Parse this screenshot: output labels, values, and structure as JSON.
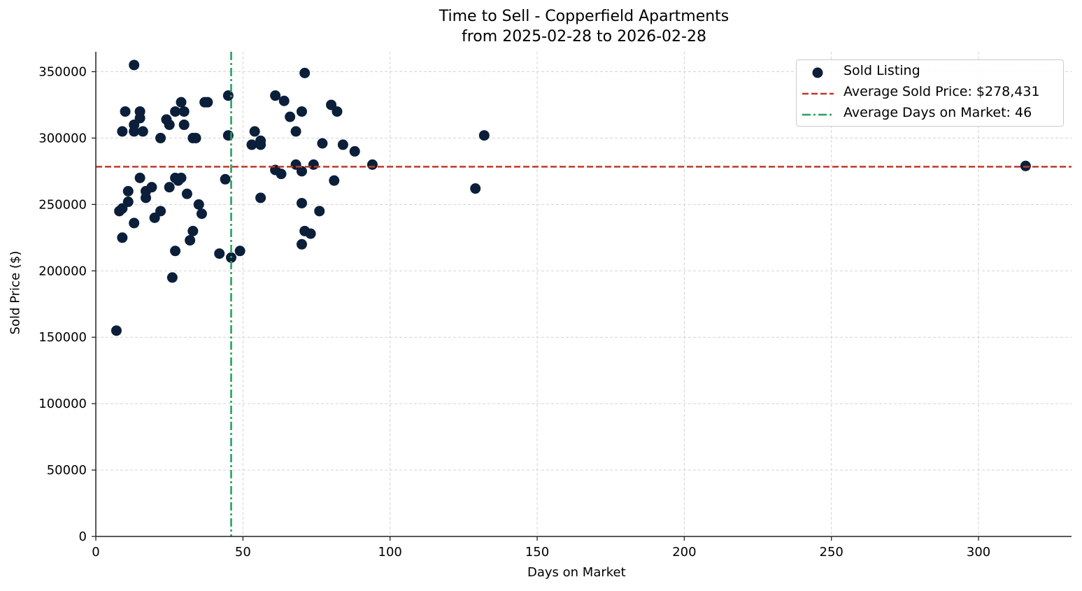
{
  "chart_data": {
    "type": "scatter",
    "title": "Time to Sell - Copperfield Apartments",
    "subtitle": "from 2025-02-28 to 2026-02-28",
    "xlabel": "Days on Market",
    "ylabel": "Sold Price ($)",
    "xlim": [
      0,
      331.6
    ],
    "ylim": [
      0,
      365000
    ],
    "xticks": [
      0,
      50,
      100,
      150,
      200,
      250,
      300
    ],
    "yticks": [
      0,
      50000,
      100000,
      150000,
      200000,
      250000,
      300000,
      350000
    ],
    "grid": true,
    "legend_position": "upper right",
    "colors": {
      "points": "#0b1f3a",
      "avg_price_line": "#c0392b",
      "avg_days_line": "#27a060",
      "grid": "#d3d3d3",
      "axis": "#222222"
    },
    "series": [
      {
        "name": "Sold Listing",
        "kind": "scatter",
        "points": [
          [
            13,
            355000
          ],
          [
            10,
            320000
          ],
          [
            15,
            320000
          ],
          [
            15,
            315000
          ],
          [
            9,
            305000
          ],
          [
            13,
            310000
          ],
          [
            13,
            305000
          ],
          [
            16,
            305000
          ],
          [
            24,
            314000
          ],
          [
            27,
            320000
          ],
          [
            29,
            327000
          ],
          [
            30,
            320000
          ],
          [
            25,
            310000
          ],
          [
            30,
            310000
          ],
          [
            22,
            300000
          ],
          [
            33,
            300000
          ],
          [
            34,
            300000
          ],
          [
            37,
            327000
          ],
          [
            38,
            327000
          ],
          [
            45,
            332000
          ],
          [
            45,
            302000
          ],
          [
            15,
            270000
          ],
          [
            11,
            260000
          ],
          [
            17,
            260000
          ],
          [
            19,
            263000
          ],
          [
            17,
            255000
          ],
          [
            11,
            252000
          ],
          [
            8,
            245000
          ],
          [
            9,
            247000
          ],
          [
            13,
            236000
          ],
          [
            9,
            225000
          ],
          [
            20,
            240000
          ],
          [
            22,
            245000
          ],
          [
            25,
            263000
          ],
          [
            27,
            270000
          ],
          [
            28,
            268000
          ],
          [
            29,
            270000
          ],
          [
            31,
            258000
          ],
          [
            35,
            250000
          ],
          [
            36,
            243000
          ],
          [
            33,
            230000
          ],
          [
            32,
            223000
          ],
          [
            27,
            215000
          ],
          [
            26,
            195000
          ],
          [
            7,
            155000
          ],
          [
            44,
            269000
          ],
          [
            42,
            213000
          ],
          [
            46,
            210000
          ],
          [
            49,
            215000
          ],
          [
            71,
            349000
          ],
          [
            61,
            332000
          ],
          [
            64,
            328000
          ],
          [
            66,
            316000
          ],
          [
            68,
            305000
          ],
          [
            54,
            305000
          ],
          [
            53,
            295000
          ],
          [
            56,
            298000
          ],
          [
            56,
            295000
          ],
          [
            70,
            320000
          ],
          [
            80,
            325000
          ],
          [
            82,
            320000
          ],
          [
            77,
            296000
          ],
          [
            84,
            295000
          ],
          [
            88,
            290000
          ],
          [
            61,
            276000
          ],
          [
            63,
            273000
          ],
          [
            68,
            280000
          ],
          [
            70,
            275000
          ],
          [
            74,
            280000
          ],
          [
            94,
            280000
          ],
          [
            81,
            268000
          ],
          [
            56,
            255000
          ],
          [
            70,
            251000
          ],
          [
            76,
            245000
          ],
          [
            71,
            230000
          ],
          [
            73,
            228000
          ],
          [
            70,
            220000
          ],
          [
            129,
            262000
          ],
          [
            132,
            302000
          ],
          [
            316,
            279000
          ]
        ]
      },
      {
        "name": "Average Sold Price: $278,431",
        "kind": "hline",
        "y": 278431,
        "style": "dashed"
      },
      {
        "name": "Average Days on Market: 46",
        "kind": "vline",
        "x": 46,
        "style": "dashdot"
      }
    ]
  },
  "labels": {
    "title": "Time to Sell - Copperfield Apartments",
    "subtitle": "from 2025-02-28 to 2026-02-28",
    "xlabel": "Days on Market",
    "ylabel": "Sold Price ($)"
  },
  "legend": {
    "items": [
      {
        "label": "Sold Listing"
      },
      {
        "label": "Average Sold Price: $278,431"
      },
      {
        "label": "Average Days on Market: 46"
      }
    ]
  }
}
